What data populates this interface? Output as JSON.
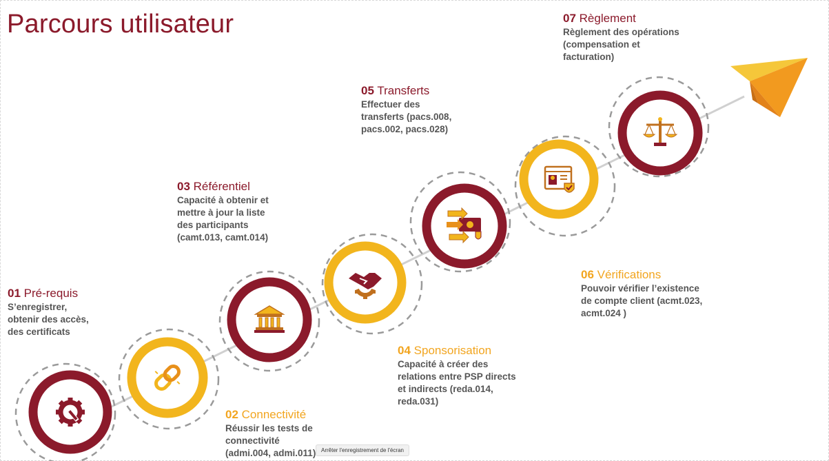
{
  "title": "Parcours utilisateur",
  "colors": {
    "red": "#8b1a2b",
    "gold": "#f2b51d",
    "line": "#d0d0d0",
    "icon": "#c0701e"
  },
  "steps": [
    {
      "num": "01",
      "name": "Pré-requis",
      "desc": [
        "S’enregistrer,",
        "obtenir des accès,",
        "des certificats"
      ],
      "color": "red",
      "icon": "gear-wrench-icon"
    },
    {
      "num": "02",
      "name": "Connectivité",
      "desc": [
        "Réussir les tests de",
        "connectivité",
        "(admi.004, admi.011)"
      ],
      "color": "gold",
      "icon": "chain-link-icon"
    },
    {
      "num": "03",
      "name": "Référentiel",
      "desc": [
        "Capacité à obtenir et",
        "mettre à jour la liste",
        "des participants",
        "(camt.013, camt.014)"
      ],
      "color": "red",
      "icon": "bank-building-icon"
    },
    {
      "num": "04",
      "name": "Sponsorisation",
      "desc": [
        "Capacité à créer des",
        "relations entre PSP directs",
        "et indirects (reda.014,",
        "reda.031)"
      ],
      "color": "gold",
      "icon": "handshake-gear-icon"
    },
    {
      "num": "05",
      "name": "Transferts",
      "desc": [
        "Effectuer des",
        "transferts (pacs.008,",
        "pacs.002, pacs.028)"
      ],
      "color": "red",
      "icon": "money-transfer-icon"
    },
    {
      "num": "06",
      "name": "Vérifications",
      "desc": [
        "Pouvoir vérifier l’existence",
        "de compte client (acmt.023,",
        "acmt.024 )"
      ],
      "color": "gold",
      "icon": "verified-profile-icon"
    },
    {
      "num": "07",
      "name": "Règlement",
      "desc": [
        "Règlement des opérations",
        "(compensation et",
        "facturation)"
      ],
      "color": "red",
      "icon": "balance-scale-icon"
    }
  ],
  "tooltip": "Arrêter l'enregistrement de l'écran"
}
